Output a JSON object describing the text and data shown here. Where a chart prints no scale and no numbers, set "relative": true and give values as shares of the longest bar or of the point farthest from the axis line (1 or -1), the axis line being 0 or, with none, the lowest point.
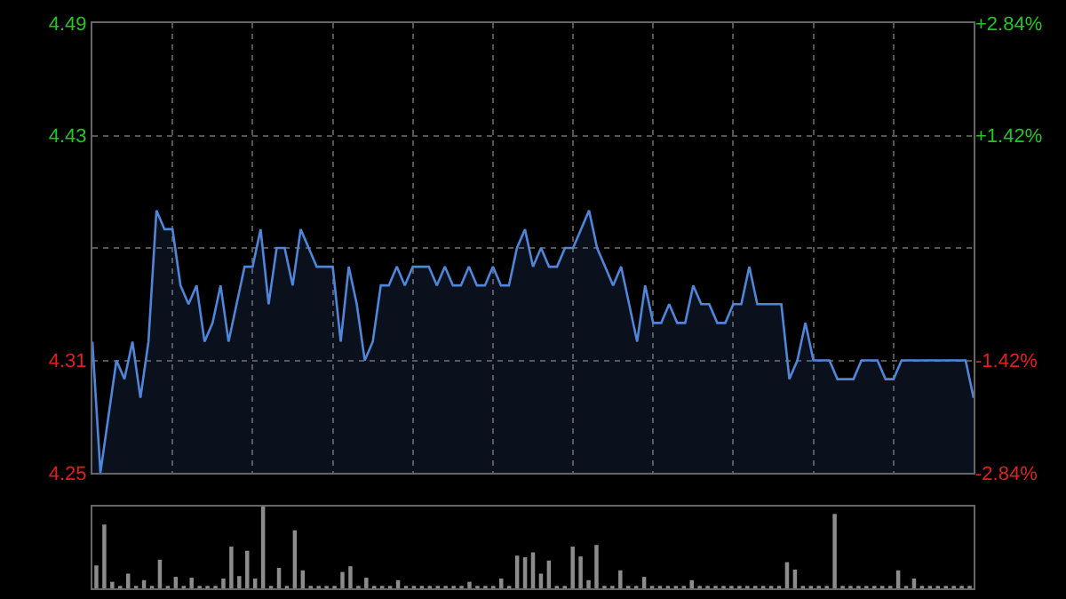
{
  "chart_data": [
    {
      "type": "area",
      "categories": [
        null,
        null,
        null,
        null,
        null,
        null,
        null,
        null,
        null,
        null,
        null,
        null,
        null,
        null,
        null,
        null,
        null,
        null,
        null,
        null,
        null,
        null,
        null,
        null,
        null,
        null,
        null,
        null,
        null,
        null,
        null,
        null,
        null,
        null,
        null,
        null,
        null,
        null,
        null,
        null,
        null,
        null,
        null,
        null,
        null,
        null,
        null,
        null,
        null,
        null,
        null,
        null,
        null,
        null,
        null,
        null,
        null,
        null,
        null,
        null,
        null,
        null,
        null,
        null,
        null,
        null,
        null,
        null,
        null,
        null,
        null,
        null,
        null,
        null,
        null,
        null,
        null,
        null,
        null,
        null,
        null,
        null,
        null,
        null,
        null,
        null,
        null,
        null,
        null,
        null,
        null,
        null,
        null,
        null,
        null,
        null,
        null,
        null,
        null,
        null,
        null,
        null,
        null,
        null,
        null,
        null,
        null,
        null,
        null,
        null,
        null
      ],
      "series": [
        {
          "color": "#4f86d9",
          "values": [
            4.32,
            4.25,
            4.28,
            4.31,
            4.3,
            4.32,
            4.29,
            4.32,
            4.39,
            4.38,
            4.38,
            4.35,
            4.34,
            4.35,
            4.32,
            4.33,
            4.35,
            4.32,
            4.34,
            4.36,
            4.36,
            4.38,
            4.34,
            4.37,
            4.37,
            4.35,
            4.38,
            4.37,
            4.36,
            4.36,
            4.36,
            4.32,
            4.36,
            4.34,
            4.31,
            4.32,
            4.35,
            4.35,
            4.36,
            4.35,
            4.36,
            4.36,
            4.36,
            4.35,
            4.36,
            4.35,
            4.35,
            4.36,
            4.35,
            4.35,
            4.36,
            4.35,
            4.35,
            4.37,
            4.38,
            4.36,
            4.37,
            4.36,
            4.36,
            4.37,
            4.37,
            4.38,
            4.39,
            4.37,
            4.36,
            4.35,
            4.36,
            4.34,
            4.32,
            4.35,
            4.33,
            4.33,
            4.34,
            4.33,
            4.33,
            4.35,
            4.34,
            4.34,
            4.33,
            4.33,
            4.34,
            4.34,
            4.36,
            4.34,
            4.34,
            4.34,
            4.34,
            4.3,
            4.31,
            4.33,
            4.31,
            4.31,
            4.31,
            4.3,
            4.3,
            4.3,
            4.31,
            4.31,
            4.31,
            4.3,
            4.3,
            4.31,
            4.31,
            4.31,
            4.31,
            4.31,
            4.31,
            4.31,
            4.31,
            4.31,
            4.29
          ]
        }
      ],
      "ylim": [
        4.25,
        4.49
      ],
      "yticks": [
        4.49,
        4.43,
        {
          "value": 4.37,
          "label": null
        },
        4.31,
        4.25
      ],
      "y2lim": [
        -2.84,
        2.84
      ],
      "y2ticks": [
        {
          "value": 2.84,
          "label": "+2.84%"
        },
        {
          "value": 1.42,
          "label": "+1.42%"
        },
        {
          "value": 0,
          "label": null
        },
        {
          "value": -1.42,
          "label": "-1.42%"
        },
        {
          "value": -2.84,
          "label": "-2.84%"
        }
      ],
      "grid": true,
      "tick_labels": "y"
    },
    {
      "type": "bar",
      "relative": true,
      "categories": [
        null,
        null,
        null,
        null,
        null,
        null,
        null,
        null,
        null,
        null,
        null,
        null,
        null,
        null,
        null,
        null,
        null,
        null,
        null,
        null,
        null,
        null,
        null,
        null,
        null,
        null,
        null,
        null,
        null,
        null,
        null,
        null,
        null,
        null,
        null,
        null,
        null,
        null,
        null,
        null,
        null,
        null,
        null,
        null,
        null,
        null,
        null,
        null,
        null,
        null,
        null,
        null,
        null,
        null,
        null,
        null,
        null,
        null,
        null,
        null,
        null,
        null,
        null,
        null,
        null,
        null,
        null,
        null,
        null,
        null,
        null,
        null,
        null,
        null,
        null,
        null,
        null,
        null,
        null,
        null,
        null,
        null,
        null,
        null,
        null,
        null,
        null,
        null,
        null,
        null,
        null,
        null,
        null,
        null,
        null,
        null,
        null,
        null,
        null,
        null,
        null,
        null,
        null,
        null,
        null,
        null,
        null,
        null,
        null,
        null,
        null
      ],
      "series": [
        {
          "color": "#8c8c8c",
          "values": [
            0.28,
            0.78,
            0.08,
            0.03,
            0.18,
            0.03,
            0.1,
            0.03,
            0.35,
            0.03,
            0.14,
            0.03,
            0.13,
            0.03,
            0.03,
            0.03,
            0.12,
            0.51,
            0.15,
            0.46,
            0.12,
            1,
            0.03,
            0.25,
            0.03,
            0.71,
            0.22,
            0.03,
            0.03,
            0.03,
            0.03,
            0.2,
            0.27,
            0.03,
            0.13,
            0.03,
            0.03,
            0.03,
            0.1,
            0.03,
            0.03,
            0.03,
            0.03,
            0.03,
            0.03,
            0.03,
            0.03,
            0.08,
            0.03,
            0.03,
            0.03,
            0.12,
            0.03,
            0.4,
            0.38,
            0.44,
            0.18,
            0.34,
            0.03,
            0.03,
            0.51,
            0.39,
            0.1,
            0.53,
            0.03,
            0.03,
            0.22,
            0.03,
            0.03,
            0.14,
            0.03,
            0.03,
            0.03,
            0.03,
            0.03,
            0.1,
            0.03,
            0.03,
            0.03,
            0.03,
            0.03,
            0.03,
            0.03,
            0.03,
            0.03,
            0.03,
            0.03,
            0.32,
            0.23,
            0.03,
            0.03,
            0.03,
            0.03,
            0.91,
            0.03,
            0.03,
            0.03,
            0.03,
            0.03,
            0.03,
            0.03,
            0.22,
            0.03,
            0.12,
            0.03,
            0.03,
            0.03,
            0.03,
            0.03,
            0.03,
            0.03
          ]
        }
      ],
      "grid": false,
      "tick_labels": false
    }
  ]
}
